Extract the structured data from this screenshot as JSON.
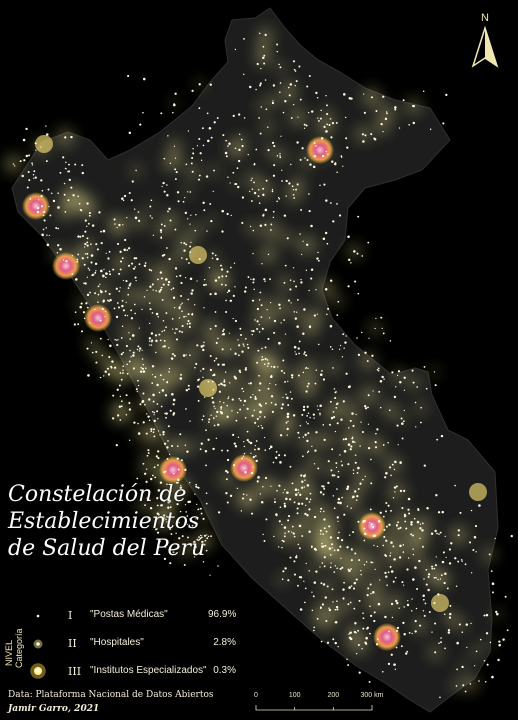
{
  "map": {
    "title_lines": [
      "Constelación de",
      "Establecimientos",
      "de Salud del Perú"
    ],
    "north_label": "N",
    "colors": {
      "background": "#000000",
      "country_fill": "#1e1e1e",
      "country_stroke": "#2e2e2e",
      "glow": "#fff59a",
      "dot": "#fffbe0",
      "hospital_core": "#e8608f",
      "hospital_ring": "#ffcf3a"
    }
  },
  "legend": {
    "axis_label_1": "NIVEL",
    "axis_label_2": "Categoría",
    "rows": [
      {
        "level": "I",
        "label": "\"Postas Médicas\"",
        "percent": "96.9%"
      },
      {
        "level": "II",
        "label": "\"Hospitales\"",
        "percent": "2.8%"
      },
      {
        "level": "III",
        "label": "\"Institutos Especializados\"",
        "percent": "0.3%"
      }
    ]
  },
  "scale_bar": {
    "labels": [
      "0",
      "100",
      "200",
      "300 km"
    ]
  },
  "credits": {
    "data_source": "Data: Plataforma Nacional de Datos Abiertos",
    "author": "Jamir Garro, 2021"
  }
}
